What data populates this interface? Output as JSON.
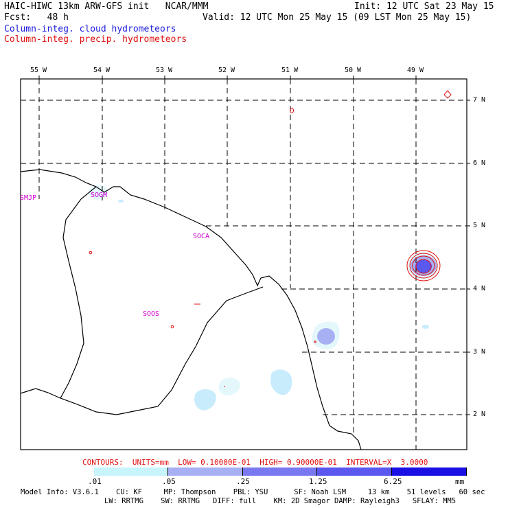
{
  "header": {
    "model_title": "HAIC-HIWC 13km ARW-GFS init   NCAR/MMM",
    "init": "Init: 12 UTC Sat 23 May 15",
    "fcst": "Fcst:   48 h",
    "valid": "Valid: 12 UTC Mon 25 May 15 (09 LST Mon 25 May 15)",
    "field_cloud": "Column-integ. cloud hydrometeors",
    "field_precip": "Column-integ. precip. hydrometeors"
  },
  "colors": {
    "cloud_label": "#1a1adc",
    "precip_label": "#e01010",
    "station": "#d000d0",
    "shade_1": "#e4f8fc",
    "shade_2": "#c8ecfc",
    "shade_3": "#a8b0f4",
    "shade_4": "#7a78f0",
    "shade_5": "#5a58ee",
    "shade_6": "#1a10e4"
  },
  "axes": {
    "lon_labels": [
      "55 W",
      "54 W",
      "53 W",
      "52 W",
      "51 W",
      "50 W",
      "49 W"
    ],
    "lat_labels": [
      "7 N",
      "6 N",
      "5 N",
      "4 N",
      "3 N",
      "2 N"
    ]
  },
  "stations": [
    "SMJP",
    "SOGM",
    "SOCA",
    "SOOS"
  ],
  "contour_info": "CONTOURS:  UNITS=mm  LOW= 0.10000E-01  HIGH= 0.90000E-01  INTERVAL=X  3.0000",
  "colorbar": {
    "labels": [
      ".01",
      ".05",
      ".25",
      "1.25",
      "6.25"
    ],
    "units": "mm"
  },
  "model_info": {
    "line1": "Model Info: V3.6.1    CU: KF     MP: Thompson    PBL: YSU      SF: Noah LSM     13 km    51 levels   60 sec",
    "line2": "LW: RRTMG    SW: RRTMG   DIFF: full    KM: 2D Smagor DAMP: Rayleigh3   SFLAY: MM5"
  }
}
